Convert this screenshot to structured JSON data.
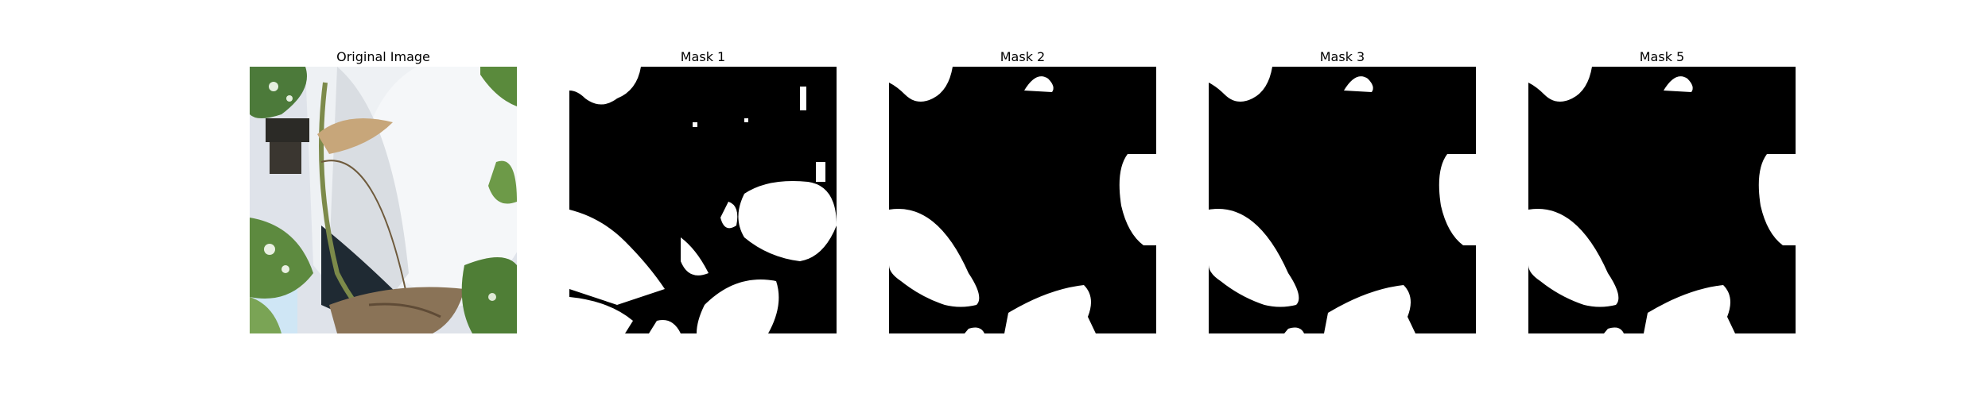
{
  "panels": [
    {
      "title": "Original Image",
      "kind": "photo"
    },
    {
      "title": "Mask 1",
      "kind": "mask"
    },
    {
      "title": "Mask 2",
      "kind": "mask"
    },
    {
      "title": "Mask 3",
      "kind": "mask"
    },
    {
      "title": "Mask 5",
      "kind": "mask"
    }
  ],
  "colors": {
    "background": "#ffffff",
    "mask_foreground": "#ffffff",
    "mask_background": "#000000"
  }
}
